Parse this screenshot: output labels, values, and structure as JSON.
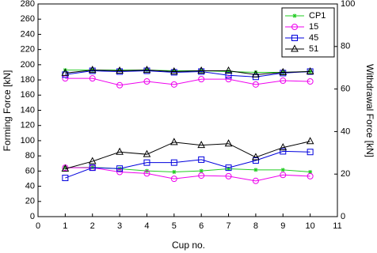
{
  "chart_data": {
    "type": "line",
    "x_label": "Cup no.",
    "y_label": "Forming Force [kN]",
    "y2_label": "Withdrawal Force [kN]",
    "x": [
      1,
      2,
      3,
      4,
      5,
      6,
      7,
      8,
      9,
      10
    ],
    "xlim": [
      0,
      11
    ],
    "xticks": [
      0,
      1,
      2,
      3,
      4,
      5,
      6,
      7,
      8,
      9,
      10,
      11
    ],
    "ylim": [
      0,
      280
    ],
    "yticks": [
      0,
      20,
      40,
      60,
      80,
      100,
      120,
      140,
      160,
      180,
      200,
      220,
      240,
      260,
      280
    ],
    "y2lim": [
      0,
      100
    ],
    "y2ticks": [
      0,
      20,
      40,
      60,
      80,
      100
    ],
    "legend": "upper right",
    "series": [
      {
        "name": "CP1",
        "color": "#22cc22",
        "marker": "star",
        "values": [
          193,
          193,
          193,
          193,
          192,
          192,
          191,
          190,
          190,
          191
        ]
      },
      {
        "name": "15",
        "color": "#ee00ee",
        "marker": "circle",
        "values": [
          182,
          182,
          173,
          178,
          174,
          181,
          181,
          174,
          179,
          178
        ]
      },
      {
        "name": "45",
        "color": "#0000dd",
        "marker": "square",
        "values": [
          187,
          192,
          191,
          192,
          190,
          191,
          186,
          184,
          189,
          191
        ]
      },
      {
        "name": "51",
        "color": "#000000",
        "marker": "triangle",
        "values": [
          189,
          193,
          192,
          193,
          191,
          192,
          192,
          187,
          190,
          191
        ]
      },
      {
        "axis": "y2",
        "color": "#22cc22",
        "marker": "star",
        "values": [
          23,
          23.2,
          22.5,
          21.5,
          21,
          21.5,
          22.5,
          22,
          22,
          21
        ]
      },
      {
        "axis": "y2",
        "color": "#ee00ee",
        "marker": "circle",
        "values": [
          23,
          23,
          21,
          20.3,
          17.8,
          19.3,
          19,
          16.8,
          19.6,
          19
        ]
      },
      {
        "axis": "y2",
        "color": "#0000dd",
        "marker": "square",
        "values": [
          18.2,
          23,
          22.6,
          25.4,
          25.4,
          26.8,
          23,
          26.4,
          30.7,
          30.4
        ]
      },
      {
        "axis": "y2",
        "color": "#000000",
        "marker": "triangle",
        "values": [
          22.5,
          26,
          30.4,
          29.3,
          35,
          33.6,
          34.3,
          27.9,
          32.5,
          35.4
        ]
      }
    ]
  }
}
